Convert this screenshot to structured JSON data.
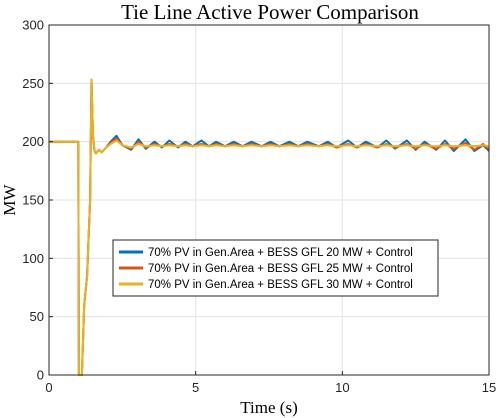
{
  "chart_data": {
    "type": "line",
    "title": "Tie Line Active Power Comparison",
    "xlabel": "Time (s)",
    "ylabel": "MW",
    "xlim": [
      0,
      15
    ],
    "ylim": [
      0,
      300
    ],
    "xticks": [
      0,
      5,
      10,
      15
    ],
    "yticks": [
      0,
      50,
      100,
      150,
      200,
      250,
      300
    ],
    "grid": true,
    "legend_position": "center",
    "series": [
      {
        "name": "70% PV in Gen.Area + BESS GFL 20 MW + Control",
        "color": "#0072BD",
        "x": [
          0,
          1.0,
          1.02,
          1.08,
          1.12,
          1.2,
          1.3,
          1.4,
          1.45,
          1.5,
          1.55,
          1.6,
          1.7,
          1.8,
          1.95,
          2.1,
          2.3,
          2.5,
          2.8,
          3.05,
          3.3,
          3.6,
          3.85,
          4.1,
          4.4,
          4.65,
          4.9,
          5.2,
          5.45,
          5.7,
          6.0,
          6.3,
          6.6,
          6.9,
          7.25,
          7.55,
          7.85,
          8.2,
          8.5,
          8.8,
          9.2,
          9.5,
          9.8,
          10.2,
          10.5,
          10.8,
          11.2,
          11.5,
          11.8,
          12.2,
          12.5,
          12.8,
          13.2,
          13.5,
          13.8,
          14.2,
          14.5,
          14.8,
          15.0
        ],
        "y": [
          200,
          200,
          0,
          0,
          0,
          60,
          85,
          150,
          253,
          205,
          192,
          190,
          193,
          191,
          195,
          200,
          205,
          197,
          193,
          202,
          194,
          200,
          195,
          201,
          195,
          200,
          196,
          201,
          196,
          200,
          196,
          200,
          196,
          200,
          196,
          200,
          196,
          200,
          196,
          200,
          196,
          200,
          195,
          201,
          195,
          200,
          195,
          201,
          194,
          201,
          193,
          200,
          193,
          201,
          192,
          202,
          192,
          197,
          192
        ]
      },
      {
        "name": "70% PV in Gen.Area + BESS GFL 25 MW + Control",
        "color": "#D95319",
        "x": [
          0,
          1.0,
          1.02,
          1.08,
          1.12,
          1.2,
          1.3,
          1.4,
          1.45,
          1.5,
          1.55,
          1.6,
          1.7,
          1.8,
          1.95,
          2.1,
          2.3,
          2.5,
          2.8,
          3.05,
          3.3,
          3.6,
          3.85,
          4.1,
          4.4,
          4.65,
          4.9,
          5.2,
          5.45,
          5.7,
          6.0,
          6.3,
          6.6,
          6.9,
          7.25,
          7.55,
          7.85,
          8.2,
          8.5,
          8.8,
          9.2,
          9.5,
          9.8,
          10.2,
          10.5,
          10.8,
          11.2,
          11.5,
          11.8,
          12.2,
          12.5,
          12.8,
          13.2,
          13.5,
          13.8,
          14.2,
          14.5,
          14.8,
          15.0
        ],
        "y": [
          200,
          200,
          0,
          0,
          0,
          60,
          85,
          150,
          253,
          205,
          192,
          190,
          193,
          191,
          195,
          199,
          203,
          197,
          194,
          200,
          195,
          198,
          196,
          198,
          196,
          198,
          196,
          198,
          196,
          198,
          196,
          198,
          196,
          198,
          196,
          198,
          196,
          198,
          196,
          198,
          196,
          198,
          195,
          198,
          195,
          198,
          195,
          198,
          195,
          198,
          194,
          198,
          194,
          198,
          194,
          199,
          193,
          198,
          193
        ]
      },
      {
        "name": "70% PV in Gen.Area + BESS GFL 30 MW + Control",
        "color": "#EDB120",
        "x": [
          0,
          1.0,
          1.02,
          1.08,
          1.12,
          1.2,
          1.3,
          1.4,
          1.45,
          1.5,
          1.55,
          1.6,
          1.7,
          1.8,
          1.95,
          2.1,
          2.3,
          2.5,
          2.8,
          3.05,
          3.3,
          3.6,
          3.85,
          4.1,
          4.4,
          4.65,
          4.9,
          5.2,
          5.45,
          5.7,
          6.0,
          6.3,
          6.6,
          6.9,
          7.25,
          7.55,
          7.85,
          8.2,
          8.5,
          8.8,
          9.2,
          9.5,
          9.8,
          10.2,
          10.5,
          10.8,
          11.2,
          11.5,
          11.8,
          12.2,
          12.5,
          12.8,
          13.2,
          13.5,
          13.8,
          14.2,
          14.5,
          14.8,
          15.0
        ],
        "y": [
          200,
          200,
          0,
          0,
          0,
          60,
          85,
          150,
          253,
          205,
          192,
          190,
          193,
          191,
          195,
          198,
          201,
          197,
          195,
          198,
          196,
          197,
          196,
          197,
          196,
          197,
          196,
          197,
          196,
          197,
          196,
          197,
          196,
          197,
          196,
          197,
          196,
          197,
          196,
          197,
          196,
          197,
          196,
          197,
          196,
          197,
          196,
          197,
          196,
          197,
          196,
          197,
          196,
          197,
          196,
          197,
          196,
          197,
          196
        ]
      }
    ]
  }
}
